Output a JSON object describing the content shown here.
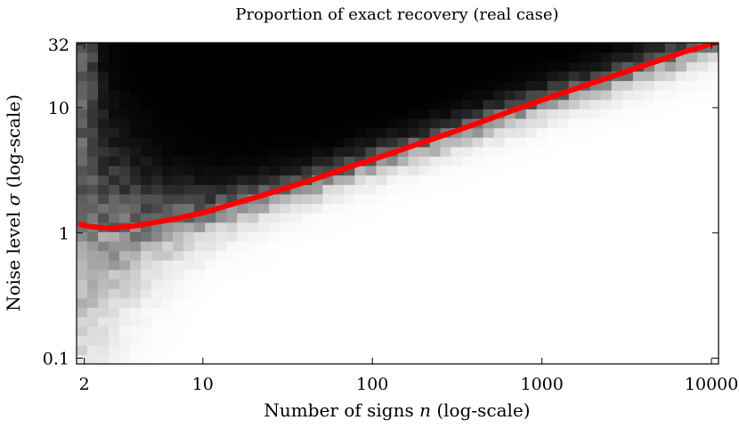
{
  "chart_data": {
    "type": "heatmap",
    "title": "Proportion of exact recovery (real case)",
    "xlabel_prefix": "Number of signs",
    "xlabel_var": "n",
    "xlabel_suffix": "(log-scale)",
    "ylabel_prefix": "Noise level",
    "ylabel_var": "σ",
    "ylabel_suffix": "(log-scale)",
    "x_scale": "log",
    "y_scale": "log",
    "xlim": [
      1.8,
      11000
    ],
    "ylim": [
      0.09,
      33
    ],
    "x_ticks": [
      2,
      10,
      100,
      1000,
      10000
    ],
    "x_tick_labels": [
      "2",
      "10",
      "100",
      "1000",
      "10000"
    ],
    "y_ticks": [
      0.1,
      1,
      10,
      32
    ],
    "y_tick_labels": [
      "0.1",
      "1",
      "10",
      "32"
    ],
    "colormap": "grayscale (black = 1, white = 0)",
    "colors": {
      "curve": "#ff0000",
      "high": "#000000",
      "low": "#ffffff"
    },
    "threshold_curve": {
      "color": "#ff0000",
      "points": [
        [
          1.9,
          1.17
        ],
        [
          2.2,
          1.12
        ],
        [
          2.6,
          1.1
        ],
        [
          3,
          1.1
        ],
        [
          4,
          1.14
        ],
        [
          5,
          1.2
        ],
        [
          7,
          1.3
        ],
        [
          10,
          1.45
        ],
        [
          15,
          1.7
        ],
        [
          20,
          1.9
        ],
        [
          30,
          2.25
        ],
        [
          50,
          2.8
        ],
        [
          70,
          3.3
        ],
        [
          100,
          3.85
        ],
        [
          200,
          5.3
        ],
        [
          300,
          6.4
        ],
        [
          500,
          8.2
        ],
        [
          700,
          9.7
        ],
        [
          1000,
          11.5
        ],
        [
          2000,
          15.8
        ],
        [
          3000,
          19
        ],
        [
          5000,
          24
        ],
        [
          7000,
          28
        ],
        [
          10500,
          33
        ]
      ]
    }
  }
}
